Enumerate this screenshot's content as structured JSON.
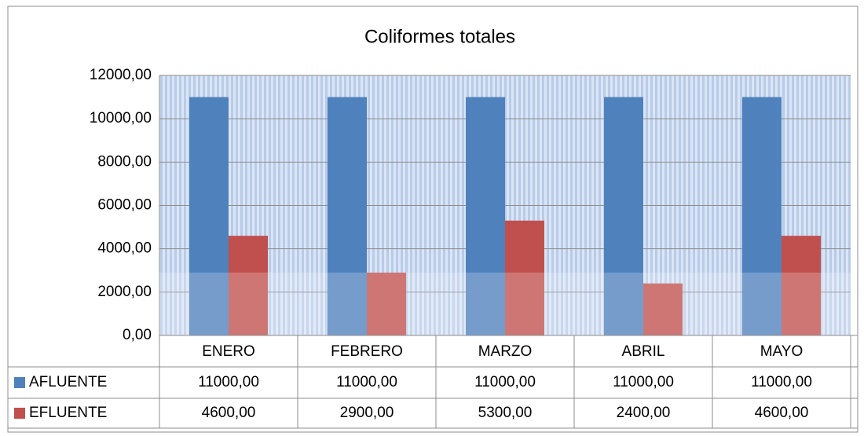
{
  "chart_data": {
    "type": "bar",
    "title": "Coliformes totales",
    "categories": [
      "ENERO",
      "FEBRERO",
      "MARZO",
      "ABRIL",
      "MAYO"
    ],
    "series": [
      {
        "name": "AFLUENTE",
        "color": "#4f81bd",
        "values": [
          11000,
          11000,
          11000,
          11000,
          11000
        ],
        "value_labels": [
          "11000,00",
          "11000,00",
          "11000,00",
          "11000,00",
          "11000,00"
        ]
      },
      {
        "name": "EFLUENTE",
        "color": "#c0504d",
        "values": [
          4600,
          2900,
          5300,
          2400,
          4600
        ],
        "value_labels": [
          "4600,00",
          "2900,00",
          "5300,00",
          "2400,00",
          "4600,00"
        ]
      }
    ],
    "ylim": [
      0,
      12000
    ],
    "yticks": [
      {
        "value": 0,
        "label": "0,00"
      },
      {
        "value": 2000,
        "label": "2000,00"
      },
      {
        "value": 4000,
        "label": "4000,00"
      },
      {
        "value": 6000,
        "label": "6000,00"
      },
      {
        "value": 8000,
        "label": "8000,00"
      },
      {
        "value": 10000,
        "label": "10000,00"
      },
      {
        "value": 12000,
        "label": "12000,00"
      }
    ],
    "grid": true
  }
}
